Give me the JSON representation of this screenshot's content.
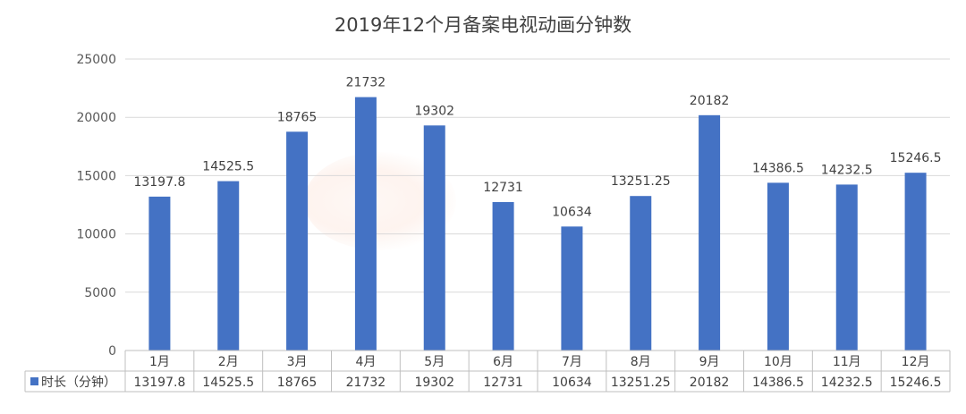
{
  "chart_data": {
    "type": "bar",
    "title": "2019年12个月备案电视动画分钟数",
    "categories": [
      "1月",
      "2月",
      "3月",
      "4月",
      "5月",
      "6月",
      "7月",
      "8月",
      "9月",
      "10月",
      "11月",
      "12月"
    ],
    "series": [
      {
        "name": "时长（分钟）",
        "values": [
          13197.8,
          14525.5,
          18765,
          21732,
          19302,
          12731,
          10634,
          13251.25,
          20182,
          14386.5,
          14232.5,
          15246.5
        ]
      }
    ],
    "data_labels": [
      "13197.8",
      "14525.5",
      "18765",
      "21732",
      "19302",
      "12731",
      "10634",
      "13251.25",
      "20182",
      "14386.5",
      "14232.5",
      "15246.5"
    ],
    "y_ticks": [
      "0",
      "5000",
      "10000",
      "15000",
      "20000",
      "25000"
    ],
    "ylim": [
      0,
      25000
    ],
    "grid": true,
    "data_table": true,
    "bar_color": "#4472c4"
  },
  "watermark": "三文娱"
}
